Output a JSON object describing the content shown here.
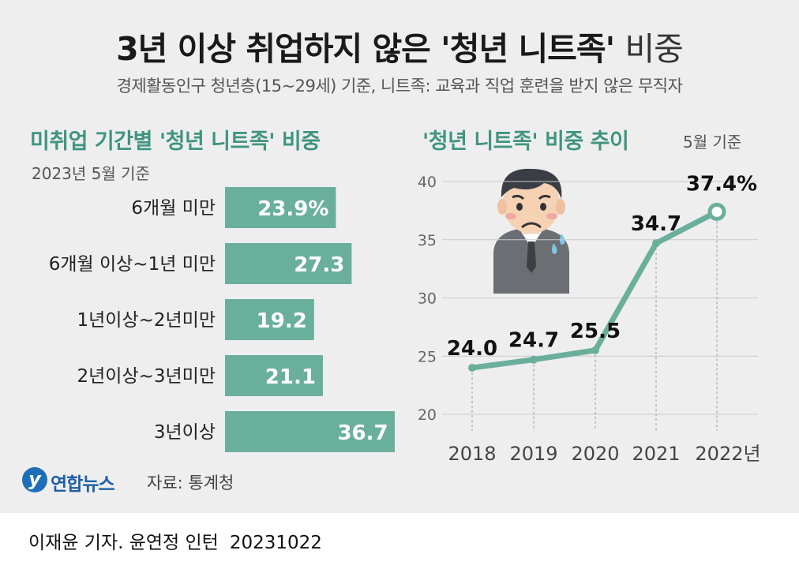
{
  "title": {
    "main": "3년 이상 취업하지 않은 '청년 니트족'",
    "suffix": "비중"
  },
  "subtitle": "경제활동인구 청년층(15~29세) 기준, 니트족: 교육과 직업 훈련을 받지 않은 무직자",
  "left_section": {
    "title": "미취업 기간별 '청년 니트족' 비중",
    "subtitle": "2023년 5월 기준"
  },
  "right_section": {
    "title": "'청년 니트족' 비중 추이",
    "note": "5월 기준"
  },
  "colors": {
    "accent": "#6aaf9c",
    "title_green": "#3f9480",
    "panel_bg": "#eeeeee"
  },
  "chart_data": [
    {
      "type": "bar",
      "orientation": "horizontal",
      "title": "미취업 기간별 '청년 니트족' 비중",
      "subtitle": "2023년 5월 기준",
      "categories": [
        "6개월 미만",
        "6개월 이상~1년 미만",
        "1년이상~2년미만",
        "2년이상~3년미만",
        "3년이상"
      ],
      "values": [
        23.9,
        27.3,
        19.2,
        21.1,
        36.7
      ],
      "value_labels": [
        "23.9%",
        "27.3",
        "19.2",
        "21.1",
        "36.7"
      ],
      "unit": "%",
      "xlim": [
        0,
        40
      ]
    },
    {
      "type": "line",
      "title": "'청년 니트족' 비중 추이",
      "note": "5월 기준",
      "x": [
        "2018",
        "2019",
        "2020",
        "2021",
        "2022년"
      ],
      "values": [
        24.0,
        24.7,
        25.5,
        34.7,
        37.4
      ],
      "value_labels": [
        "24.0",
        "24.7",
        "25.5",
        "34.7",
        "37.4%"
      ],
      "ylim": [
        20,
        40
      ],
      "yticks": [
        "20",
        "25",
        "30",
        "35",
        "40"
      ],
      "grid": true
    }
  ],
  "footer": {
    "logo_mark": "y",
    "logo_text": "연합뉴스",
    "source": "자료: 통계청"
  },
  "credit": {
    "reporters": "이재윤 기자. 윤연정 인턴",
    "date": "20231022"
  },
  "illustration": {
    "icon": "worried-person-icon"
  }
}
